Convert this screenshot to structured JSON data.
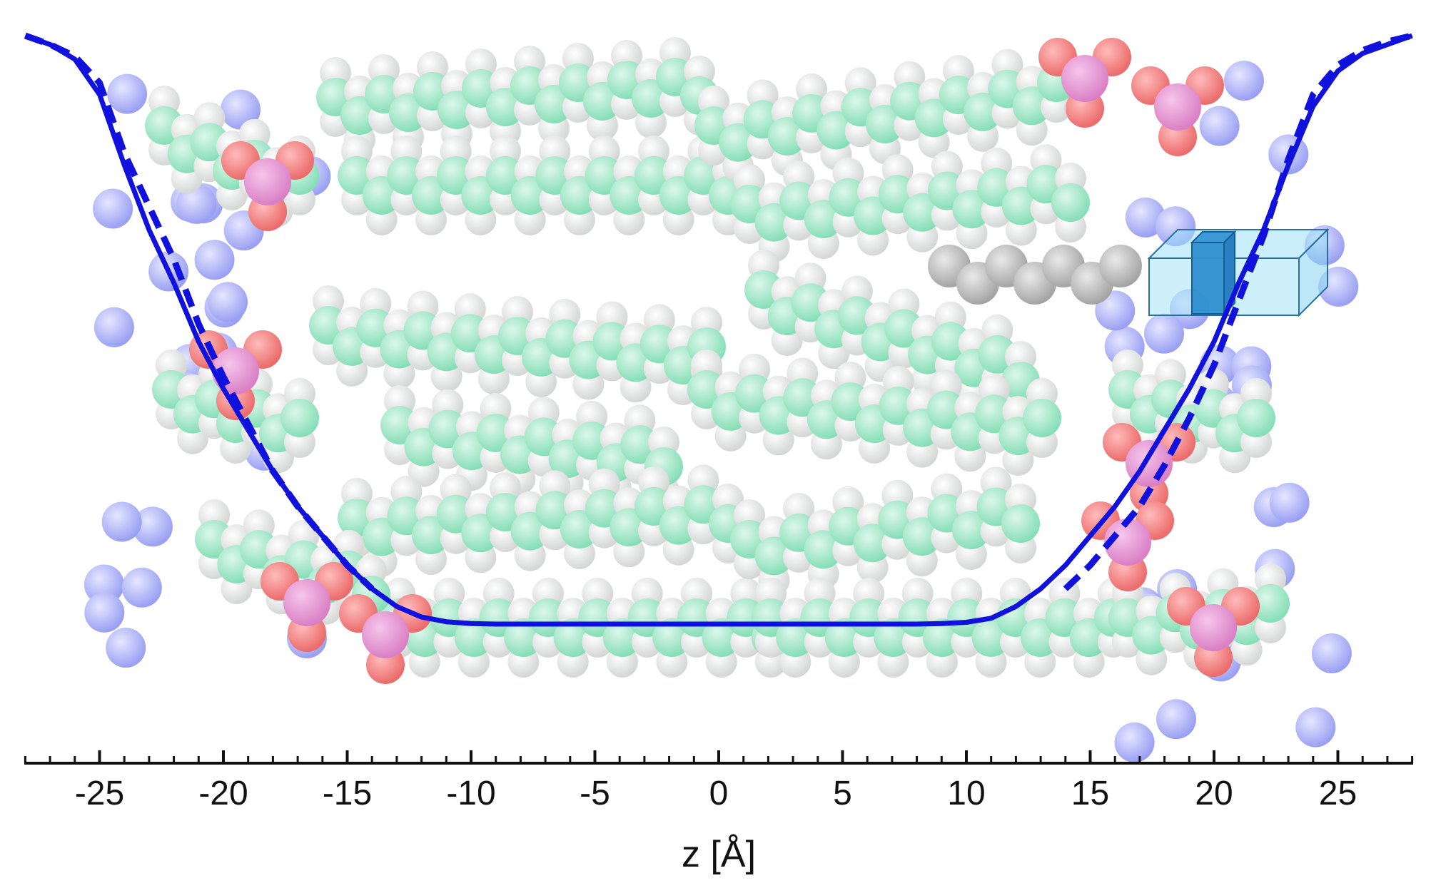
{
  "chart_data": {
    "type": "line",
    "title": "",
    "xlabel": "z  [Å]",
    "ylabel": "",
    "xlim": [
      -28,
      28
    ],
    "x_ticks": [
      -25,
      -20,
      -15,
      -10,
      -5,
      0,
      5,
      10,
      15,
      20,
      25
    ],
    "x_tick_labels": [
      "-25",
      "-20",
      "-15",
      "-10",
      "-5",
      "0",
      "5",
      "10",
      "15",
      "20",
      "25"
    ],
    "y_axis_shown": false,
    "grid": false,
    "legend": "none",
    "background": "space-filling molecular model of a lipid bilayer (water spheres on both sides, acyl chains in the middle) with a translucent blue box near z = 20 Å",
    "series": [
      {
        "style": "solid",
        "color": "#1111dd",
        "x": [
          -28,
          -27,
          -26,
          -25,
          -24,
          -23,
          -22,
          -21,
          -20,
          -19,
          -18,
          -17,
          -16,
          -15,
          -14,
          -13,
          -12,
          -11,
          -10,
          -9,
          -8,
          -6,
          -4,
          -2,
          0,
          2,
          4,
          6,
          8,
          9,
          10,
          11,
          12,
          13,
          14,
          15,
          16,
          17,
          18,
          19,
          20,
          21,
          22,
          23,
          24,
          25,
          26,
          27,
          28
        ],
        "y": [
          1.0,
          0.985,
          0.96,
          0.9,
          0.78,
          0.67,
          0.58,
          0.48,
          0.4,
          0.33,
          0.26,
          0.2,
          0.15,
          0.1,
          0.06,
          0.03,
          0.012,
          0.004,
          0.001,
          0.0,
          0.0,
          0.0,
          0.0,
          0.0,
          0.0,
          0.0,
          0.0,
          0.0,
          0.0,
          0.001,
          0.003,
          0.01,
          0.03,
          0.06,
          0.1,
          0.15,
          0.2,
          0.26,
          0.33,
          0.4,
          0.48,
          0.58,
          0.67,
          0.78,
          0.88,
          0.94,
          0.97,
          0.985,
          1.0
        ]
      },
      {
        "style": "dashed",
        "color": "#1111dd",
        "x": [
          -28,
          -27,
          -26,
          -25,
          -24,
          -23,
          -22,
          -21,
          -20,
          -19,
          -18,
          -17,
          -16,
          -15,
          -14,
          14,
          15,
          16,
          17,
          18,
          19,
          20,
          21,
          22,
          23,
          24,
          25,
          26,
          27,
          28
        ],
        "y": [
          1.0,
          0.985,
          0.965,
          0.92,
          0.8,
          0.71,
          0.62,
          0.51,
          0.42,
          0.34,
          0.26,
          0.2,
          0.15,
          0.1,
          0.06,
          0.06,
          0.1,
          0.15,
          0.2,
          0.27,
          0.35,
          0.44,
          0.55,
          0.66,
          0.79,
          0.9,
          0.95,
          0.975,
          0.99,
          1.0
        ]
      }
    ]
  }
}
